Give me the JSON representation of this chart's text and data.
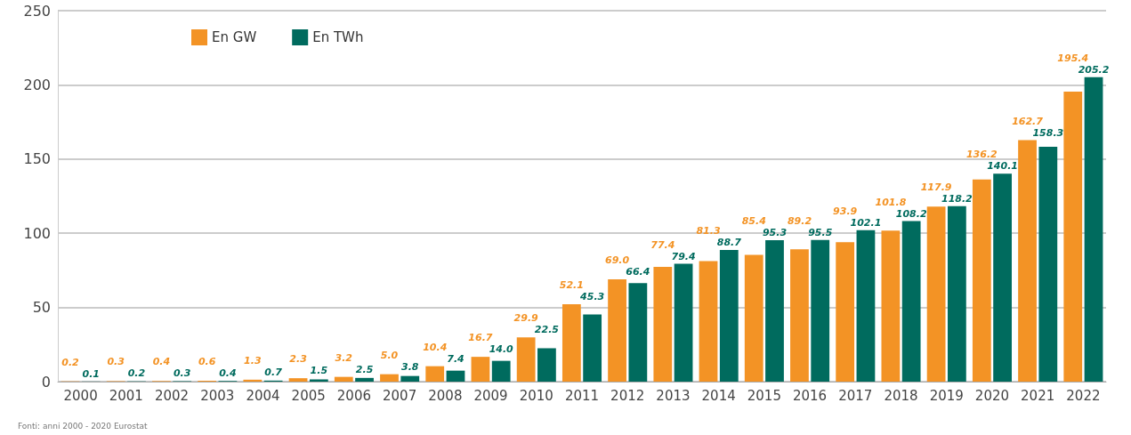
{
  "chart_data": {
    "type": "bar",
    "categories": [
      "2000",
      "2001",
      "2002",
      "2003",
      "2004",
      "2005",
      "2006",
      "2007",
      "2008",
      "2009",
      "2010",
      "2011",
      "2012",
      "2013",
      "2014",
      "2015",
      "2016",
      "2017",
      "2018",
      "2019",
      "2020",
      "2021",
      "2022"
    ],
    "series": [
      {
        "name": "En GW",
        "color": "#f39325",
        "values": [
          0.2,
          0.3,
          0.4,
          0.6,
          1.3,
          2.3,
          3.2,
          5.0,
          10.4,
          16.7,
          29.9,
          52.1,
          69.0,
          77.4,
          81.3,
          85.4,
          89.2,
          93.9,
          101.8,
          117.9,
          136.2,
          162.7,
          195.4
        ],
        "value_labels": [
          "0.2",
          "0.3",
          "0.4",
          "0.6",
          "1.3",
          "2.3",
          "3.2",
          "5.0",
          "10.4",
          "16.7",
          "29.9",
          "52.1",
          "69.0",
          "77.4",
          "81.3",
          "85.4",
          "89.2",
          "93.9",
          "101.8",
          "117.9",
          "136.2",
          "162.7",
          "195.4"
        ]
      },
      {
        "name": "En TWh",
        "color": "#006b5e",
        "values": [
          0.1,
          0.2,
          0.3,
          0.4,
          0.7,
          1.5,
          2.5,
          3.8,
          7.4,
          14.0,
          22.5,
          45.3,
          66.4,
          79.4,
          88.7,
          95.3,
          95.5,
          102.1,
          108.2,
          118.2,
          140.1,
          158.3,
          205.2
        ],
        "value_labels": [
          "0.1",
          "0.2",
          "0.3",
          "0.4",
          "0.7",
          "1.5",
          "2.5",
          "3.8",
          "7.4",
          "14.0",
          "22.5",
          "45.3",
          "66.4",
          "79.4",
          "88.7",
          "95.3",
          "95.5",
          "102.1",
          "108.2",
          "118.2",
          "140.1",
          "158.3",
          "205.2"
        ]
      }
    ],
    "ylim": [
      0,
      250
    ],
    "yticks": [
      0,
      50,
      100,
      150,
      200,
      250
    ],
    "grid": "y",
    "legend": "top left",
    "annotations": [
      "Fonti: anni 2000 - 2020 Eurostat"
    ]
  }
}
